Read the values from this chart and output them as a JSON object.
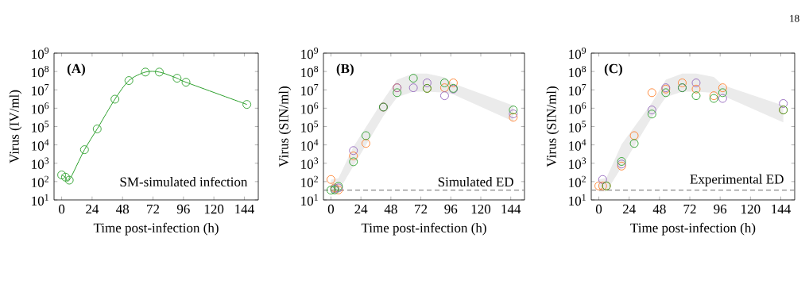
{
  "chart_data": [
    {
      "type": "line",
      "xlabel": "Time post-infection (h)",
      "ylabel": "Virus (IV/ml)",
      "log": "y",
      "xlim": [
        -6,
        155
      ],
      "ylim": [
        10,
        1000000000
      ],
      "xticks": [
        0,
        24,
        48,
        72,
        96,
        120,
        144
      ],
      "yticks": [
        {
          "value": 10,
          "label": "10$^{1}$"
        },
        {
          "value": 100,
          "label": "10$^{2}$"
        },
        {
          "value": 1000,
          "label": "10$^{3}$"
        },
        {
          "value": 10000,
          "label": "10$^{4}$"
        },
        {
          "value": 100000,
          "label": "10$^{5}$"
        },
        {
          "value": 1000000,
          "label": "10$^{6}$"
        },
        {
          "value": 10000000,
          "label": "10$^{7}$"
        },
        {
          "value": 100000000,
          "label": "10$^{8}$"
        },
        {
          "value": 1000000000,
          "label": "10$^{9}$"
        }
      ],
      "x": [
        0,
        3,
        6,
        18,
        28,
        42,
        53,
        66,
        77,
        91,
        98,
        146
      ],
      "series": [
        {
          "type": "line",
          "color": "#2ca02c",
          "marker": "circle",
          "values": [
            230,
            175,
            120,
            5500,
            74000,
            3100000,
            32000000,
            93000000,
            93000000,
            43000000,
            26000000,
            1600000
          ]
        }
      ],
      "annotations": [
        "(A)",
        "SM-simulated infection"
      ]
    },
    {
      "type": "scatter",
      "xlabel": "Time post-infection (h)",
      "ylabel": "Virus (SIN/ml)",
      "log": "y",
      "marker": "circle",
      "xlim": [
        -6,
        155
      ],
      "ylim": [
        10,
        1000000000
      ],
      "xticks": [
        0,
        24,
        48,
        72,
        96,
        120,
        144
      ],
      "yticks": [
        {
          "value": 10,
          "label": "10$^{1}$"
        },
        {
          "value": 100,
          "label": "10$^{2}$"
        },
        {
          "value": 1000,
          "label": "10$^{3}$"
        },
        {
          "value": 10000,
          "label": "10$^{4}$"
        },
        {
          "value": 100000,
          "label": "10$^{5}$"
        },
        {
          "value": 1000000,
          "label": "10$^{6}$"
        },
        {
          "value": 10000000,
          "label": "10$^{7}$"
        },
        {
          "value": 100000000,
          "label": "10$^{8}$"
        },
        {
          "value": 1000000000,
          "label": "10$^{9}$"
        }
      ],
      "x": [
        0,
        3,
        6,
        18,
        28,
        42,
        53,
        66,
        77,
        91,
        98,
        146
      ],
      "series": [
        {
          "type": "area",
          "color": "#ebebeb",
          "x": [
            0,
            6,
            18,
            42,
            53,
            66,
            77,
            91,
            98,
            146
          ],
          "values": [
            null,
            null,
            null,
            null,
            null,
            null,
            null,
            null,
            null,
            null
          ],
          "lower": [
            29,
            29,
            710,
            370000,
            4000000,
            7900000,
            7900000,
            7100000,
            5600000,
            190000
          ],
          "upper": [
            126,
            150,
            7900,
            2900000,
            36000000,
            76000000,
            76000000,
            48000000,
            22000000,
            1400000
          ]
        },
        {
          "color": "#ff7f2a",
          "values": [
            130,
            45,
            35,
            2500,
            12000,
            1150000,
            13000000,
            null,
            12000000,
            13000000,
            24000000,
            320000
          ]
        },
        {
          "color": "#9467bd",
          "values": [
            null,
            40,
            45,
            4900,
            null,
            1150000,
            13000000,
            13000000,
            24000000,
            4800000,
            11000000,
            490000
          ]
        },
        {
          "color": "#2ca02c",
          "values": [
            34,
            35,
            55,
            1200,
            32000,
            1150000,
            7000000,
            43000000,
            12000000,
            24000000,
            12000000,
            800000
          ]
        }
      ],
      "ref_lines": [
        {
          "axis": "y",
          "value": 34,
          "color": "#888888",
          "line_style": "dashed"
        }
      ],
      "annotations": [
        "(B)",
        "Simulated ED"
      ]
    },
    {
      "type": "scatter",
      "xlabel": "Time post-infection (h)",
      "ylabel": "Virus (SIN/ml)",
      "log": "y",
      "marker": "circle",
      "xlim": [
        -6,
        155
      ],
      "ylim": [
        10,
        1000000000
      ],
      "xticks": [
        0,
        24,
        48,
        72,
        96,
        120,
        144
      ],
      "yticks": [
        {
          "value": 10,
          "label": "10$^{1}$"
        },
        {
          "value": 100,
          "label": "10$^{2}$"
        },
        {
          "value": 1000,
          "label": "10$^{3}$"
        },
        {
          "value": 10000,
          "label": "10$^{4}$"
        },
        {
          "value": 100000,
          "label": "10$^{5}$"
        },
        {
          "value": 1000000,
          "label": "10$^{6}$"
        },
        {
          "value": 10000000,
          "label": "10$^{7}$"
        },
        {
          "value": 100000000,
          "label": "10$^{8}$"
        },
        {
          "value": 1000000000,
          "label": "10$^{9}$"
        }
      ],
      "x": [
        0,
        3,
        6,
        18,
        28,
        42,
        53,
        66,
        77,
        91,
        98,
        146
      ],
      "series": [
        {
          "type": "area",
          "color": "#ebebeb",
          "x": [
            0,
            6,
            18,
            42,
            53,
            66,
            77,
            91,
            98,
            146
          ],
          "values": [
            null,
            null,
            null,
            null,
            null,
            null,
            null,
            null,
            null,
            null
          ],
          "lower": [
            29,
            29,
            600,
            320000,
            4000000,
            7900000,
            7900000,
            6800000,
            4800000,
            170000
          ],
          "upper": [
            130,
            160,
            10700,
            2000000,
            36000000,
            76000000,
            76000000,
            50000000,
            18000000,
            1400000
          ]
        },
        {
          "color": "#ff7f2a",
          "values": [
            58,
            58,
            58,
            700,
            32000,
            7000000,
            11000000,
            24000000,
            11000000,
            4800000,
            13000000,
            800000
          ]
        },
        {
          "color": "#9467bd",
          "values": [
            null,
            130,
            null,
            900,
            null,
            800000,
            13000000,
            13000000,
            24000000,
            null,
            3400000,
            1800000
          ]
        },
        {
          "color": "#2ca02c",
          "values": [
            null,
            null,
            58,
            1250,
            12000,
            480000,
            7000000,
            13000000,
            4800000,
            3400000,
            7000000,
            800000
          ]
        }
      ],
      "ref_lines": [
        {
          "axis": "y",
          "value": 34,
          "color": "#888888",
          "line_style": "dashed"
        }
      ],
      "annotations": [
        "(C)",
        "Experimental ED",
        "18"
      ]
    }
  ]
}
